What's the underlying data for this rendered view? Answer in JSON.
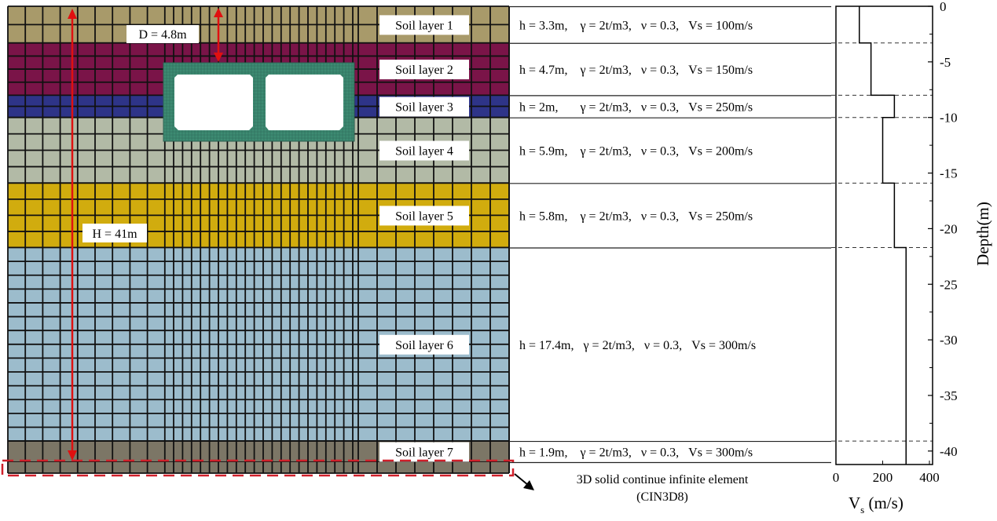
{
  "annotations": {
    "depth_label": "D = 4.8m",
    "height_label": "H = 41m",
    "infinite_element_line1": "3D solid continue infinite element",
    "infinite_element_line2": "(CIN3D8)",
    "arrow_color": "#e01010"
  },
  "layers": [
    {
      "name": "Soil layer 1",
      "top": 0,
      "bottom": -3.3,
      "color": "#a89a6a",
      "props": "h = 3.3m,    γ = 2t/m3,   ν = 0.3,   Vs = 100m/s"
    },
    {
      "name": "Soil layer 2",
      "top": -3.3,
      "bottom": -8.0,
      "color": "#7a1448",
      "props": "h = 4.7m,    γ = 2t/m3,   ν = 0.3,   Vs = 150m/s"
    },
    {
      "name": "Soil layer 3",
      "top": -8.0,
      "bottom": -10.0,
      "color": "#2e3488",
      "props": "h = 2m,       γ = 2t/m3,   ν = 0.3,   Vs = 250m/s"
    },
    {
      "name": "Soil layer 4",
      "top": -10.0,
      "bottom": -15.9,
      "color": "#b2baa6",
      "props": "h = 5.9m,    γ = 2t/m3,   ν = 0.3,   Vs = 200m/s"
    },
    {
      "name": "Soil layer 5",
      "top": -15.9,
      "bottom": -21.7,
      "color": "#d1ac0e",
      "props": "h = 5.8m,    γ = 2t/m3,   ν = 0.3,   Vs = 250m/s"
    },
    {
      "name": "Soil layer 6",
      "top": -21.7,
      "bottom": -39.1,
      "color": "#9cbccc",
      "props": "h = 17.4m,   γ = 2t/m3,   ν = 0.3,   Vs = 300m/s"
    },
    {
      "name": "Soil layer 7",
      "top": -39.1,
      "bottom": -41.0,
      "color": "#7c7666",
      "props": "h = 1.9m,    γ = 2t/m3,   ν = 0.3,   Vs = 300m/s"
    }
  ],
  "tunnel_color": "#3d8a72",
  "chart_data": {
    "type": "line",
    "xlabel": "V",
    "xlabel_sub": "s",
    "xlabel_unit": " (m/s)",
    "ylabel": "Depth(m)",
    "xlim": [
      0,
      400
    ],
    "ylim": [
      -41,
      0
    ],
    "xticks": [
      "0",
      "200",
      "400"
    ],
    "xtick_values": [
      0,
      200,
      400
    ],
    "yticks": [
      "0",
      "-5",
      "-10",
      "-15",
      "-20",
      "-25",
      "-30",
      "-35",
      "-40"
    ],
    "ytick_values": [
      0,
      -5,
      -10,
      -15,
      -20,
      -25,
      -30,
      -35,
      -40
    ],
    "profile": [
      {
        "vs": 100,
        "top": 0,
        "bottom": -3.3
      },
      {
        "vs": 150,
        "top": -3.3,
        "bottom": -8.0
      },
      {
        "vs": 250,
        "top": -8.0,
        "bottom": -10.0
      },
      {
        "vs": 200,
        "top": -10.0,
        "bottom": -15.9
      },
      {
        "vs": 250,
        "top": -15.9,
        "bottom": -21.7
      },
      {
        "vs": 300,
        "top": -21.7,
        "bottom": -41.0
      }
    ],
    "dashed_boundaries": [
      -3.3,
      -8.0,
      -10.0,
      -15.9,
      -21.7,
      -39.1
    ]
  }
}
